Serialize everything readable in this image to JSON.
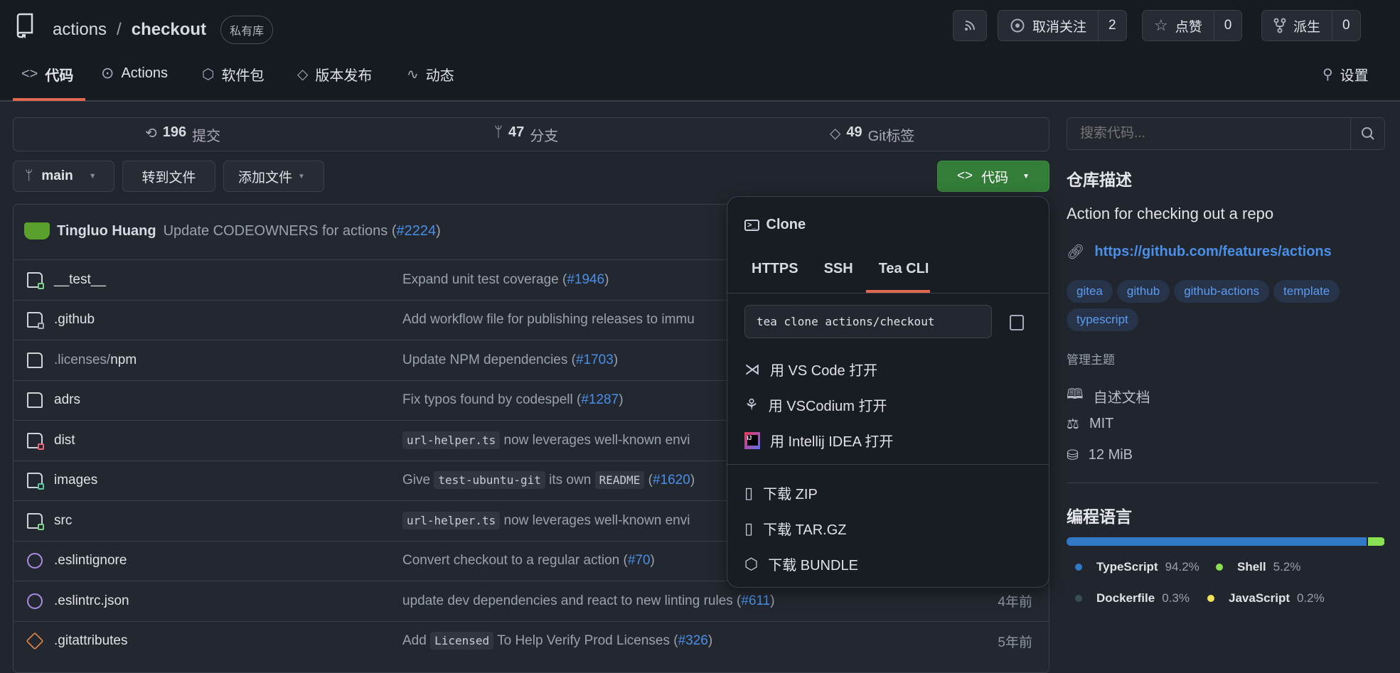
{
  "repo": {
    "owner": "actions",
    "separator": "/",
    "name": "checkout",
    "visibility": "私有库"
  },
  "header_actions": {
    "rss": "rss-icon",
    "watch_label": "取消关注",
    "watch_count": "2",
    "star_label": "点赞",
    "star_count": "0",
    "fork_label": "派生",
    "fork_count": "0"
  },
  "nav": {
    "items": [
      {
        "label": "代码",
        "active": true
      },
      {
        "label": "Actions"
      },
      {
        "label": "软件包"
      },
      {
        "label": "版本发布"
      },
      {
        "label": "动态"
      }
    ],
    "settings": "设置"
  },
  "stats": {
    "commits_count": "196",
    "commits_label": "提交",
    "branches_count": "47",
    "branches_label": "分支",
    "tags_count": "49",
    "tags_label": "Git标签"
  },
  "toolbar": {
    "branch": "main",
    "goto_file": "转到文件",
    "add_file": "添加文件",
    "code": "代码"
  },
  "latest_commit": {
    "author": "Tingluo Huang",
    "message": "Update CODEOWNERS for actions (",
    "pr": "#2224",
    "close": ")"
  },
  "files": [
    {
      "name": "__test__",
      "icon": "folder-test-icon",
      "msg": [
        [
          "Expand unit test coverage (",
          ""
        ],
        [
          "#1946",
          "l"
        ],
        [
          ")",
          ""
        ]
      ],
      "time": ""
    },
    {
      "name": ".github",
      "icon": "folder-github-icon",
      "msg": [
        [
          "Add workflow file for publishing releases to immu",
          ""
        ]
      ],
      "time": ""
    },
    {
      "name_dim": ".licenses/",
      "name": "npm",
      "icon": "folder-icon",
      "msg": [
        [
          "Update NPM dependencies (",
          ""
        ],
        [
          "#1703",
          "l"
        ],
        [
          ")",
          ""
        ]
      ],
      "time": ""
    },
    {
      "name": "adrs",
      "icon": "folder-icon",
      "msg": [
        [
          "Fix typos found by codespell (",
          ""
        ],
        [
          "#1287",
          "l"
        ],
        [
          ")",
          ""
        ]
      ],
      "time": ""
    },
    {
      "name": "dist",
      "icon": "folder-lock-icon",
      "msg": [
        [
          "url-helper.ts",
          "c"
        ],
        [
          " now leverages well-known envi",
          ""
        ]
      ],
      "time": ""
    },
    {
      "name": "images",
      "icon": "folder-images-icon",
      "msg": [
        [
          "Give ",
          ""
        ],
        [
          "test-ubuntu-git",
          "c"
        ],
        [
          " its own ",
          ""
        ],
        [
          "README",
          "c"
        ],
        [
          " (",
          ""
        ],
        [
          "#1620",
          "l"
        ],
        [
          ")",
          ""
        ]
      ],
      "time": ""
    },
    {
      "name": "src",
      "icon": "folder-src-icon",
      "msg": [
        [
          "url-helper.ts",
          "c"
        ],
        [
          " now leverages well-known envi",
          ""
        ]
      ],
      "time": ""
    },
    {
      "name": ".eslintignore",
      "icon": "eslint-icon",
      "msg": [
        [
          "Convert checkout to a regular action (",
          ""
        ],
        [
          "#70",
          "l"
        ],
        [
          ")",
          ""
        ]
      ],
      "time": ""
    },
    {
      "name": ".eslintrc.json",
      "icon": "eslint-icon",
      "msg": [
        [
          "update dev dependencies and react to new linting rules (",
          ""
        ],
        [
          "#611",
          "l"
        ],
        [
          ")",
          ""
        ]
      ],
      "time": "4年前"
    },
    {
      "name": ".gitattributes",
      "icon": "git-icon",
      "msg": [
        [
          "Add ",
          ""
        ],
        [
          "Licensed",
          "c"
        ],
        [
          " To Help Verify Prod Licenses (",
          ""
        ],
        [
          "#326",
          "l"
        ],
        [
          ")",
          ""
        ]
      ],
      "time": "5年前"
    }
  ],
  "clone_popup": {
    "title": "Clone",
    "tabs": [
      "HTTPS",
      "SSH",
      "Tea CLI"
    ],
    "active_tab": "Tea CLI",
    "command": "tea clone actions/checkout",
    "open_items": [
      "用 VS Code 打开",
      "用 VSCodium 打开",
      "用 Intellij IDEA 打开"
    ],
    "download_items": [
      "下载 ZIP",
      "下载 TAR.GZ",
      "下载 BUNDLE"
    ]
  },
  "sidebar": {
    "search_placeholder": "搜索代码...",
    "about_title": "仓库描述",
    "description": "Action for checking out a repo",
    "website": "https://github.com/features/actions",
    "topics": [
      "gitea",
      "github",
      "github-actions",
      "template",
      "typescript"
    ],
    "manage_topics": "管理主题",
    "readme": "自述文档",
    "license": "MIT",
    "size": "12  MiB",
    "languages_title": "编程语言",
    "languages": [
      {
        "name": "TypeScript",
        "percent": 94.2,
        "label": "94.2%",
        "color": "#3178c6"
      },
      {
        "name": "Shell",
        "percent": 5.2,
        "label": "5.2%",
        "color": "#89e051"
      },
      {
        "name": "Dockerfile",
        "percent": 0.3,
        "label": "0.3%",
        "color": "#384d54"
      },
      {
        "name": "JavaScript",
        "percent": 0.2,
        "label": "0.2%",
        "color": "#f1e05a"
      }
    ]
  },
  "colors": {
    "accent_underline": "#e0684f",
    "primary_button": "#347d39",
    "link": "#4a8fe7"
  }
}
